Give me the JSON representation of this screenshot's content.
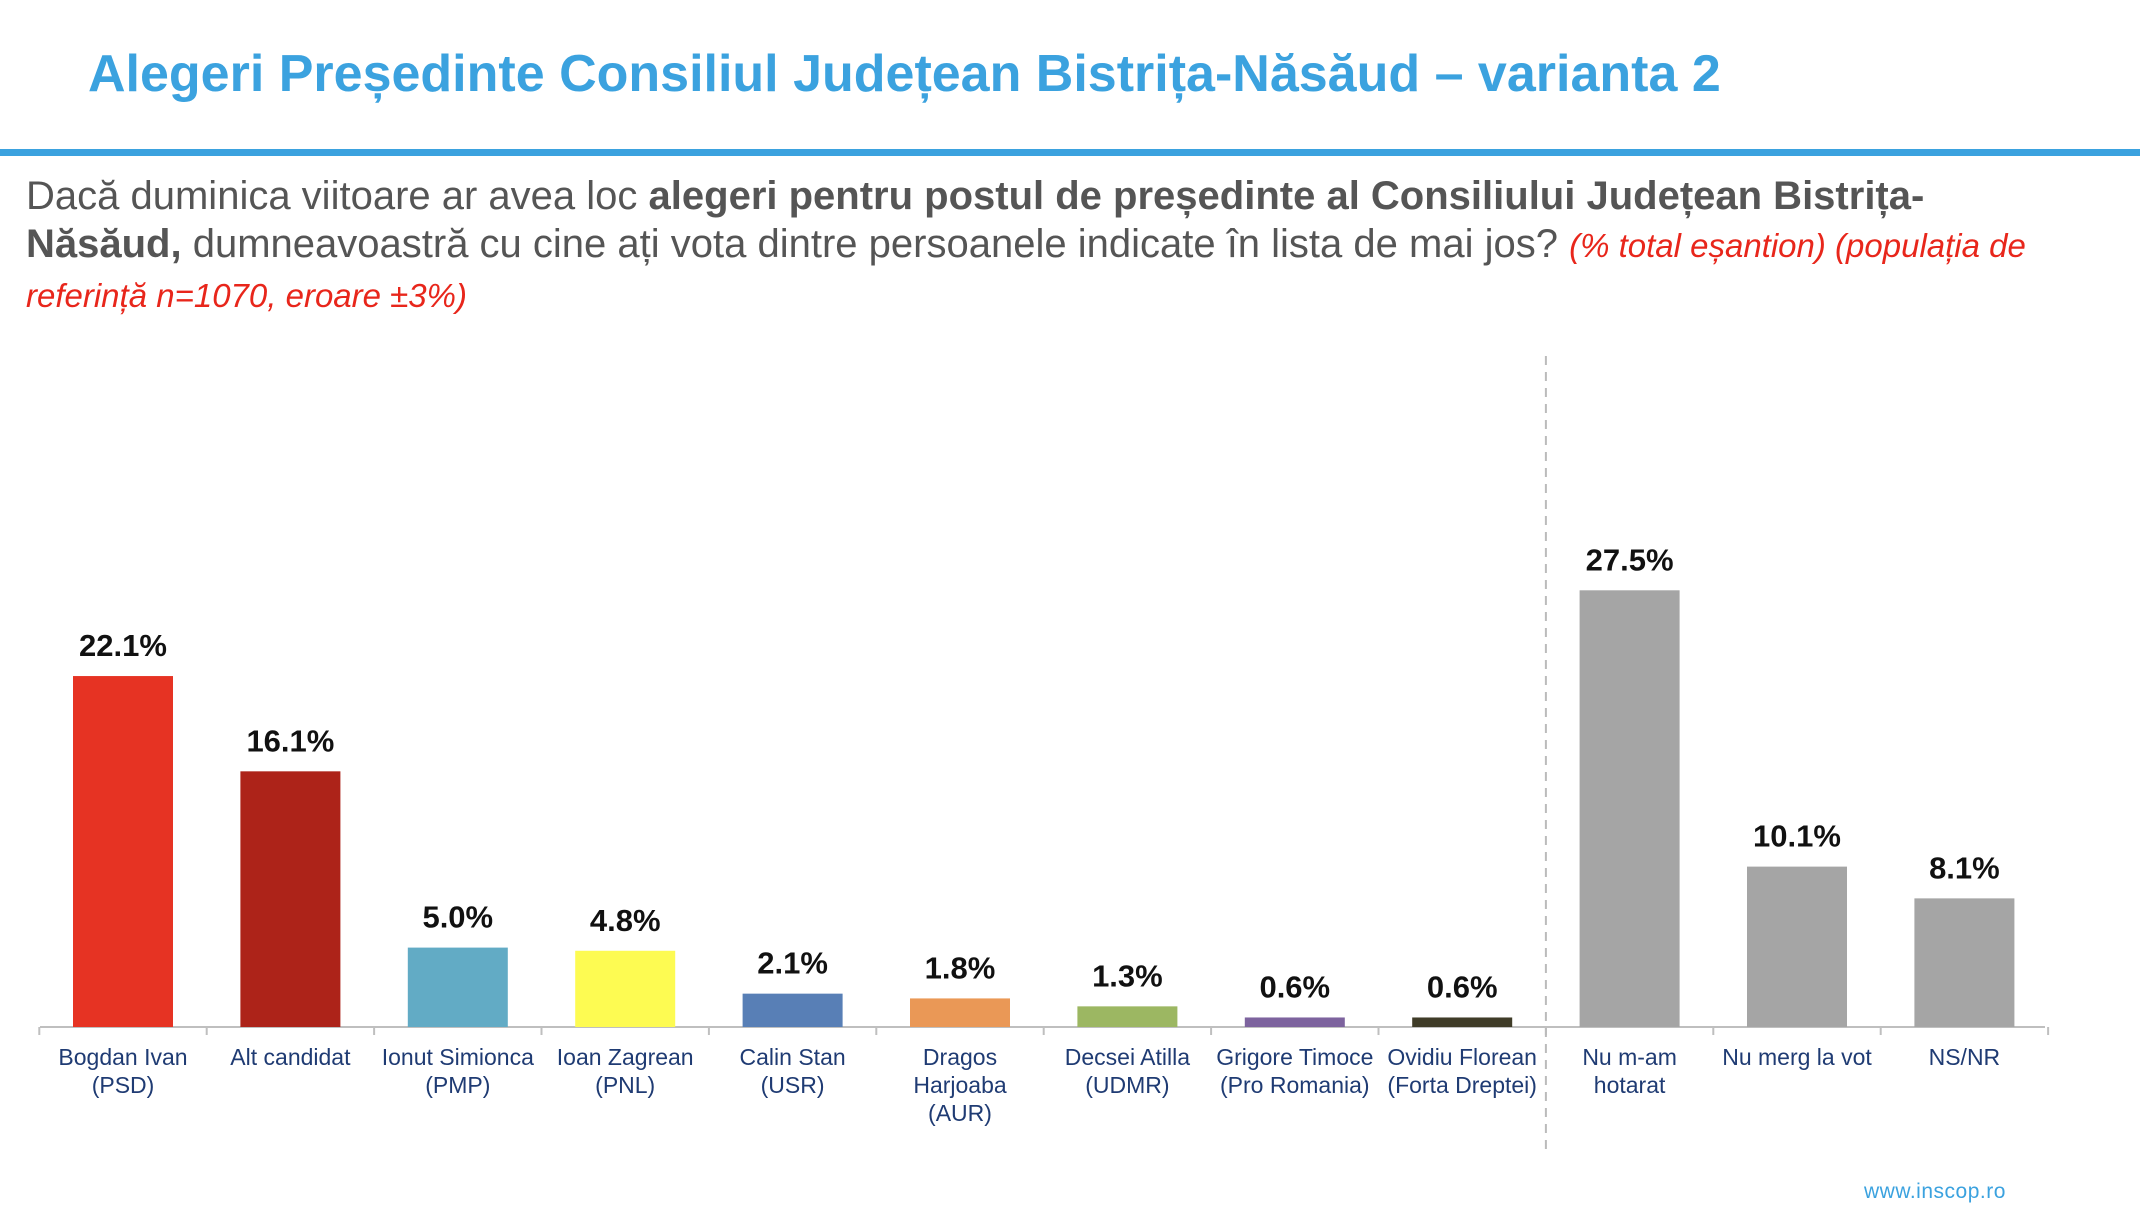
{
  "header": {
    "title": "Alegeri Președinte Consiliul Județean Bistrița-Năsăud – varianta 2"
  },
  "question": {
    "intro": "Dacă duminica viitoare ar avea loc ",
    "bold": "alegeri pentru postul de președinte al Consiliului Județean Bistrița-Năsăud,",
    "rest": " dumneavoastră cu cine ați vota dintre persoanele indicate în lista de mai jos? ",
    "note": "(% total eșantion) (populația de referință n=1070, eroare ±3%)"
  },
  "chart_data": {
    "type": "bar",
    "categories": [
      [
        "Bogdan Ivan",
        "(PSD)"
      ],
      [
        "Alt candidat"
      ],
      [
        "Ionut Simionca",
        "(PMP)"
      ],
      [
        "Ioan Zagrean",
        "(PNL)"
      ],
      [
        "Calin Stan",
        "(USR)"
      ],
      [
        "Dragos",
        "Harjoaba",
        "(AUR)"
      ],
      [
        "Decsei Atilla",
        "(UDMR)"
      ],
      [
        "Grigore Timoce",
        "(Pro Romania)"
      ],
      [
        "Ovidiu Florean",
        "(Forta Dreptei)"
      ],
      [
        "Nu m-am",
        "hotarat"
      ],
      [
        "Nu merg la vot"
      ],
      [
        "NS/NR"
      ]
    ],
    "values": [
      22.1,
      16.1,
      5.0,
      4.8,
      2.1,
      1.8,
      1.3,
      0.6,
      0.6,
      27.5,
      10.1,
      8.1
    ],
    "data_labels": [
      "22.1%",
      "16.1%",
      "5.0%",
      "4.8%",
      "2.1%",
      "1.8%",
      "1.3%",
      "0.6%",
      "0.6%",
      "27.5%",
      "10.1%",
      "8.1%"
    ],
    "colors": [
      "#e63323",
      "#ad2319",
      "#62abc5",
      "#fdfb52",
      "#587fb6",
      "#ea9856",
      "#9cb762",
      "#7d639e",
      "#3f3c28",
      "#a5a5a5",
      "#a5a5a5",
      "#a5a5a5"
    ],
    "ylim": [
      0,
      30
    ],
    "separator_after_index": 8,
    "grid": false
  },
  "footer": {
    "url": "www.inscop.ro"
  }
}
